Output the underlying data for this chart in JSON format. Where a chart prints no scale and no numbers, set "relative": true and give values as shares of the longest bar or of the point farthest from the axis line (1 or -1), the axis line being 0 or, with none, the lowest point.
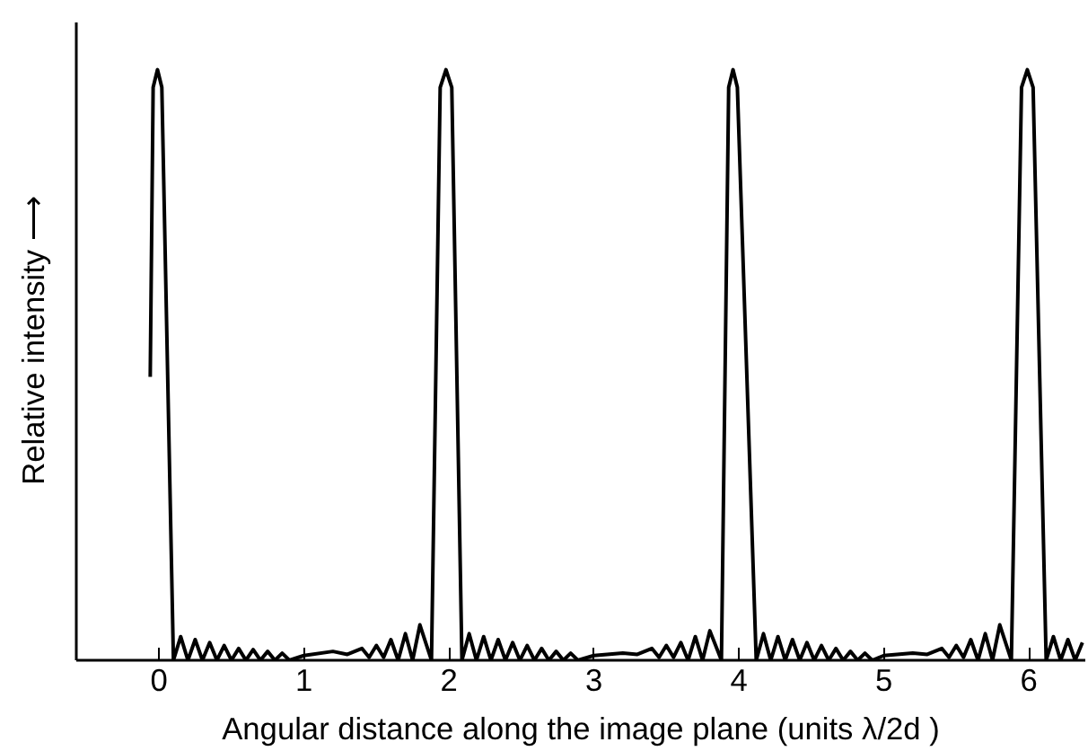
{
  "chart_data": {
    "type": "line",
    "relative": true,
    "xlabel": "Angular distance along the image plane (units λ/2d )",
    "ylabel": "Relative intensity ⟶",
    "xlim": [
      -0.57,
      6.39
    ],
    "xticks": [
      0,
      1,
      2,
      3,
      4,
      5,
      6
    ],
    "grid": false,
    "marker": "none",
    "line_style": "solid",
    "series": [
      {
        "color": "#000000",
        "x": [
          -0.06,
          -0.04,
          -0.01,
          0.02,
          0.1,
          0.15,
          0.2,
          0.25,
          0.3,
          0.35,
          0.4,
          0.45,
          0.5,
          0.55,
          0.6,
          0.65,
          0.7,
          0.75,
          0.8,
          0.85,
          0.9,
          1.0,
          1.2,
          1.3,
          1.4,
          1.45,
          1.5,
          1.55,
          1.6,
          1.65,
          1.7,
          1.75,
          1.8,
          1.88,
          1.94,
          1.98,
          2.02,
          2.09,
          2.14,
          2.19,
          2.24,
          2.29,
          2.34,
          2.39,
          2.44,
          2.49,
          2.54,
          2.59,
          2.64,
          2.69,
          2.74,
          2.79,
          2.84,
          2.89,
          3.0,
          3.2,
          3.3,
          3.4,
          3.45,
          3.5,
          3.55,
          3.6,
          3.65,
          3.7,
          3.75,
          3.8,
          3.88,
          3.93,
          3.96,
          3.99,
          4.12,
          4.17,
          4.22,
          4.27,
          4.32,
          4.37,
          4.42,
          4.47,
          4.52,
          4.57,
          4.62,
          4.67,
          4.72,
          4.77,
          4.82,
          4.87,
          4.92,
          5.0,
          5.2,
          5.3,
          5.4,
          5.45,
          5.5,
          5.55,
          5.6,
          5.65,
          5.7,
          5.75,
          5.8,
          5.88,
          5.95,
          5.99,
          6.03,
          6.12,
          6.17,
          6.22,
          6.27,
          6.32,
          6.37
        ],
        "values": [
          0.48,
          0.97,
          1,
          0.97,
          0,
          0.04,
          0,
          0.035,
          0,
          0.03,
          0,
          0.025,
          0,
          0.02,
          0,
          0.018,
          0,
          0.015,
          0,
          0.012,
          0,
          0.008,
          0.015,
          0.01,
          0.02,
          0.005,
          0.025,
          0.005,
          0.035,
          0,
          0.045,
          0,
          0.06,
          0,
          0.97,
          1,
          0.97,
          0,
          0.045,
          0,
          0.04,
          0,
          0.035,
          0,
          0.03,
          0,
          0.025,
          0,
          0.02,
          0,
          0.015,
          0,
          0.012,
          0,
          0.008,
          0.012,
          0.01,
          0.02,
          0.005,
          0.025,
          0.005,
          0.03,
          0,
          0.04,
          0,
          0.05,
          0,
          0.97,
          1,
          0.97,
          0,
          0.045,
          0,
          0.04,
          0,
          0.035,
          0,
          0.03,
          0,
          0.025,
          0,
          0.02,
          0,
          0.015,
          0,
          0.012,
          0,
          0.008,
          0.012,
          0.01,
          0.02,
          0.005,
          0.025,
          0.005,
          0.035,
          0,
          0.045,
          0,
          0.06,
          0,
          0.97,
          1,
          0.97,
          0,
          0.04,
          0,
          0.035,
          0,
          0.03
        ]
      }
    ]
  }
}
